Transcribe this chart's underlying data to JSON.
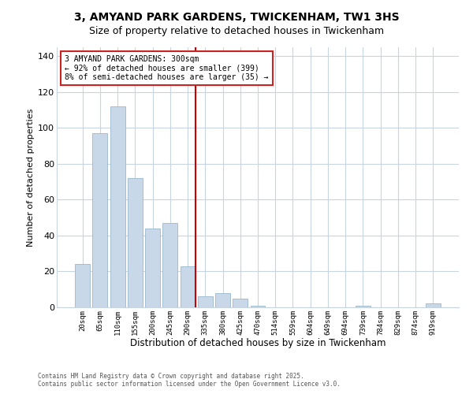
{
  "title": "3, AMYAND PARK GARDENS, TWICKENHAM, TW1 3HS",
  "subtitle": "Size of property relative to detached houses in Twickenham",
  "xlabel": "Distribution of detached houses by size in Twickenham",
  "ylabel": "Number of detached properties",
  "categories": [
    "20sqm",
    "65sqm",
    "110sqm",
    "155sqm",
    "200sqm",
    "245sqm",
    "290sqm",
    "335sqm",
    "380sqm",
    "425sqm",
    "470sqm",
    "514sqm",
    "559sqm",
    "604sqm",
    "649sqm",
    "694sqm",
    "739sqm",
    "784sqm",
    "829sqm",
    "874sqm",
    "919sqm"
  ],
  "values": [
    24,
    97,
    112,
    72,
    44,
    47,
    23,
    6,
    8,
    5,
    1,
    0,
    0,
    0,
    0,
    0,
    1,
    0,
    0,
    0,
    2
  ],
  "bar_color": "#c8d8e8",
  "bar_edge_color": "#9ab8cc",
  "vline_x_idx": 6,
  "vline_color": "#cc0000",
  "ylim": [
    0,
    145
  ],
  "yticks": [
    0,
    20,
    40,
    60,
    80,
    100,
    120,
    140
  ],
  "annotation_title": "3 AMYAND PARK GARDENS: 300sqm",
  "annotation_line1": "← 92% of detached houses are smaller (399)",
  "annotation_line2": "8% of semi-detached houses are larger (35) →",
  "footer1": "Contains HM Land Registry data © Crown copyright and database right 2025.",
  "footer2": "Contains public sector information licensed under the Open Government Licence v3.0.",
  "bg_color": "#ffffff",
  "grid_color": "#c8d4e0",
  "title_fontsize": 10,
  "subtitle_fontsize": 9
}
